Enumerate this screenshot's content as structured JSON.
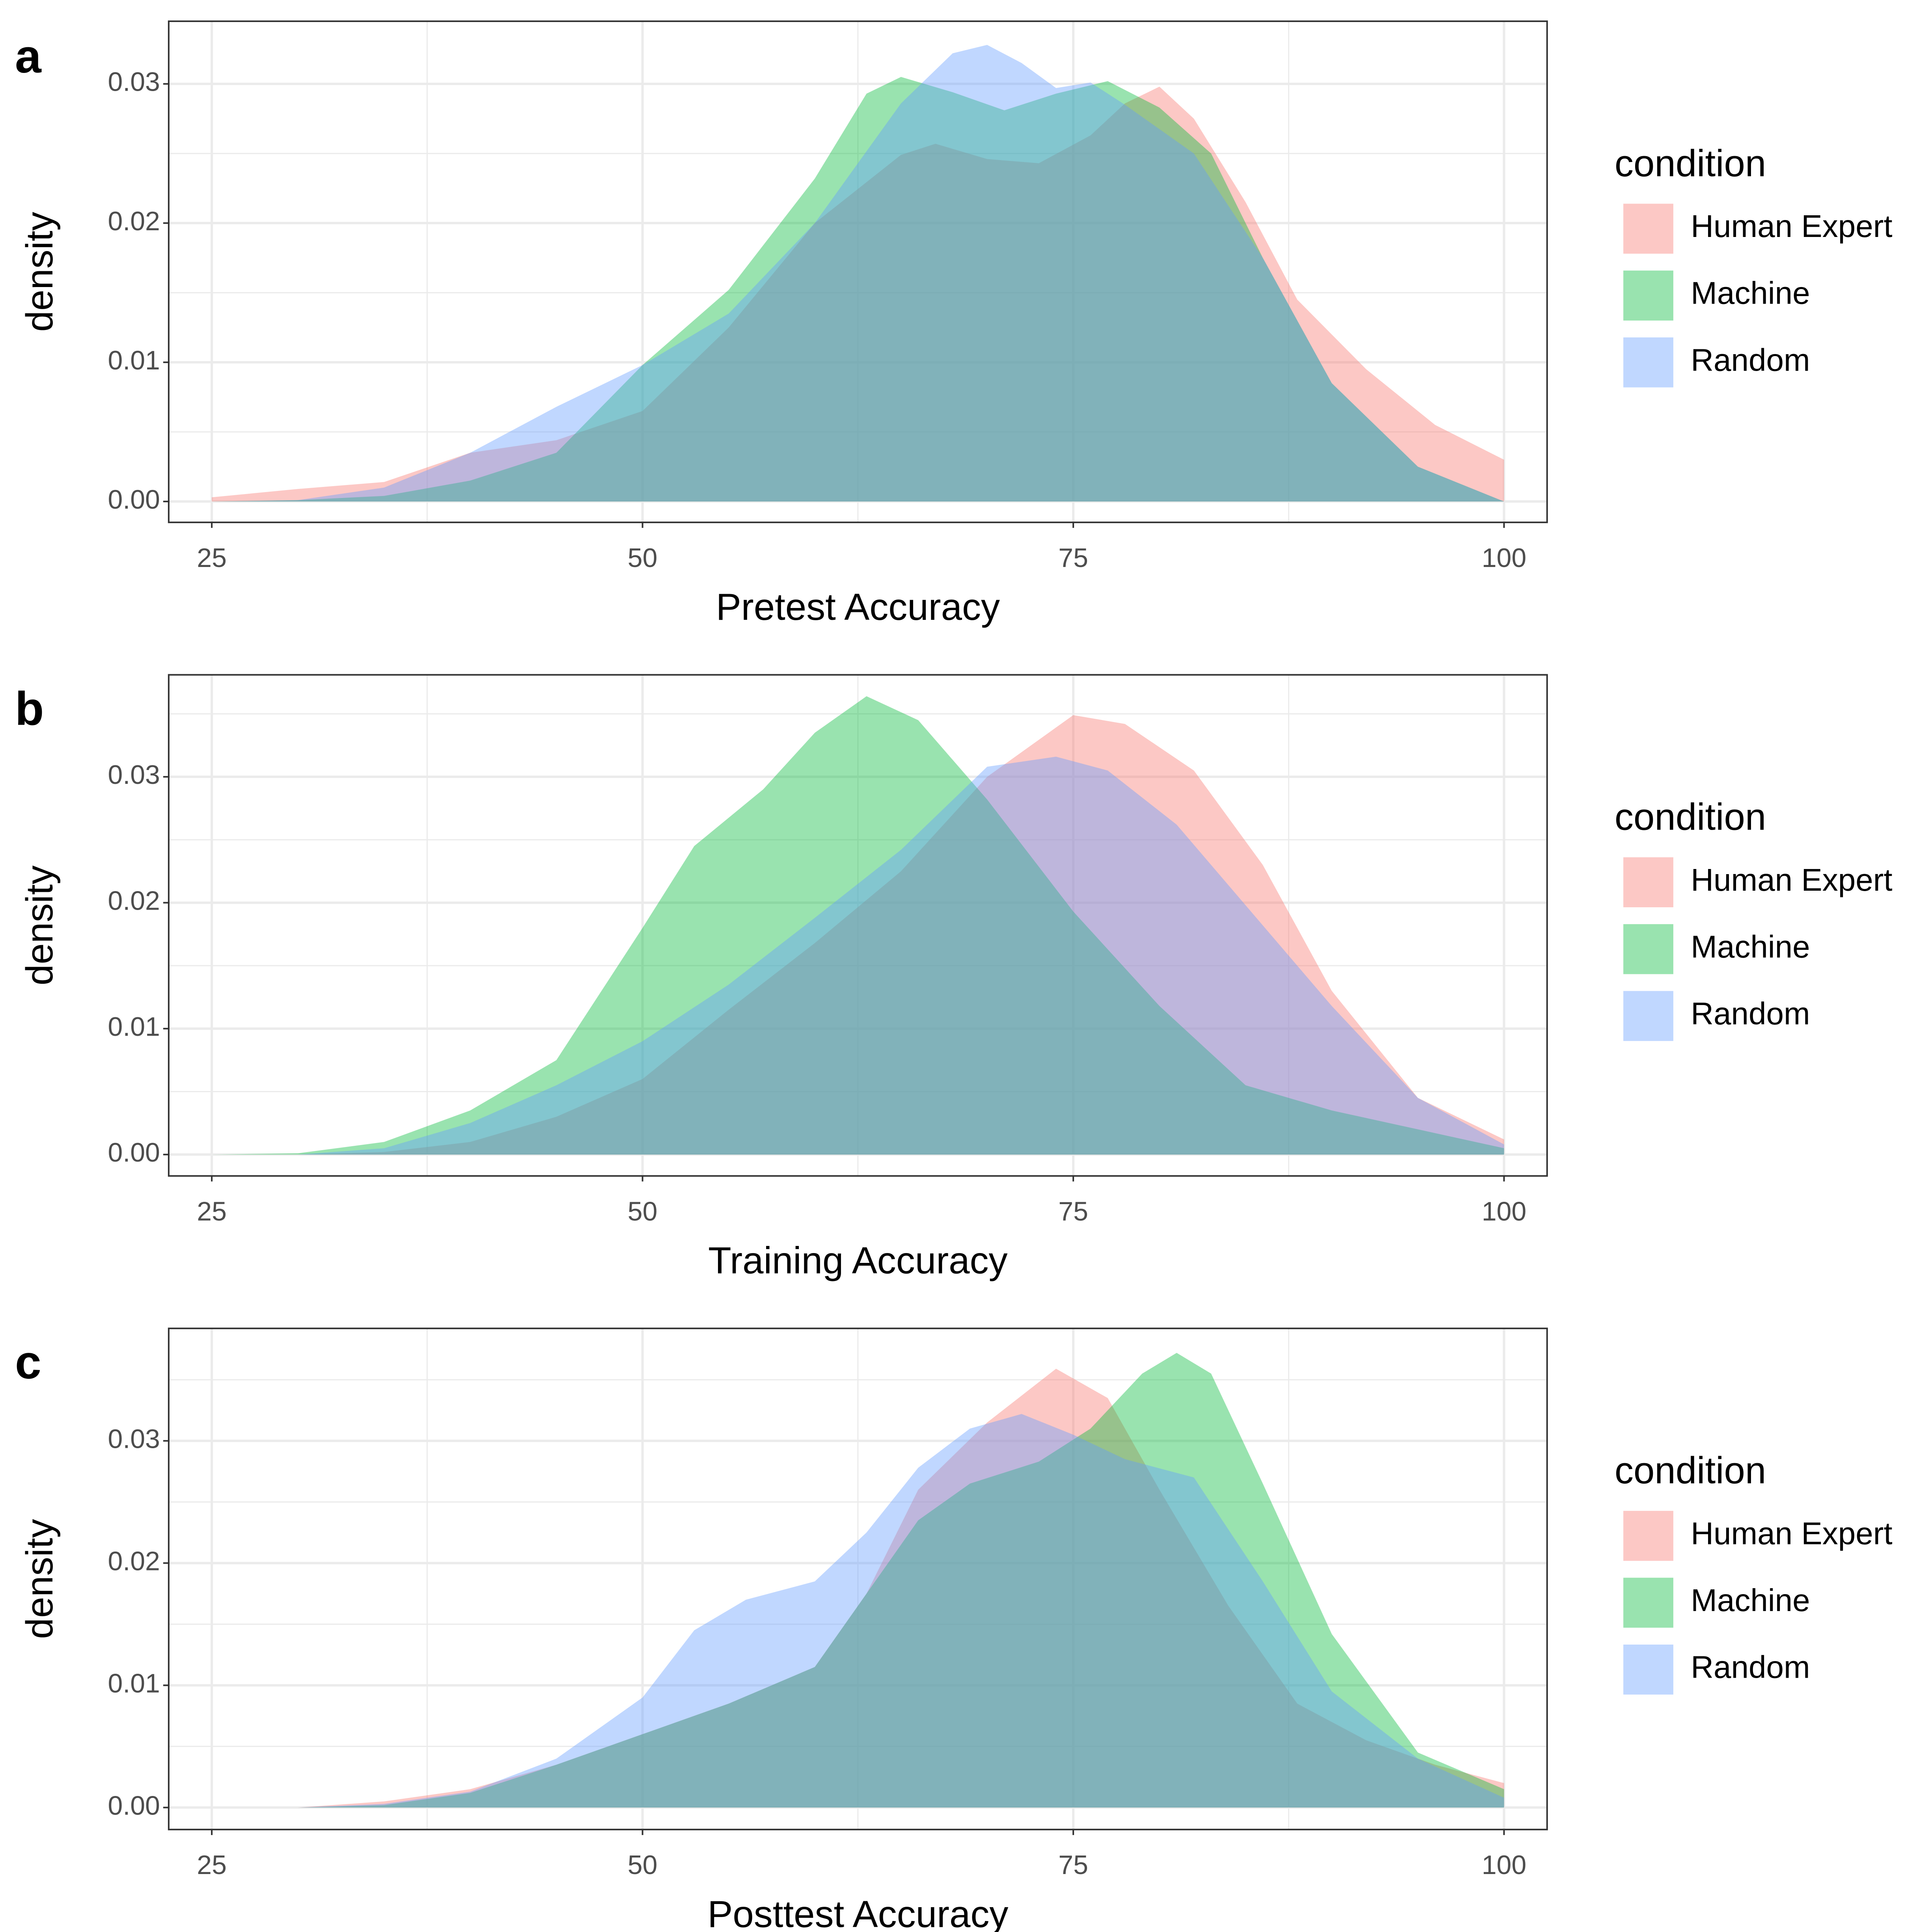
{
  "colors": {
    "human_expert": "#F8766D",
    "machine": "#00BA38",
    "random": "#619CFF",
    "grid": "#EBEBEB",
    "panel_border": "#333333"
  },
  "legend": {
    "title": "condition",
    "items": [
      "Human Expert",
      "Machine",
      "Random"
    ]
  },
  "chart_data": [
    {
      "type": "area",
      "panel": "a",
      "xlabel": "Pretest Accuracy",
      "ylabel": "density",
      "xlim": [
        22.5,
        102.5
      ],
      "ylim": [
        -0.0015,
        0.0345
      ],
      "xticks": [
        "25",
        "50",
        "75",
        "100"
      ],
      "yticks": [
        "0.00",
        "0.01",
        "0.02",
        "0.03"
      ],
      "grid": true,
      "legend_position": "right",
      "series": [
        {
          "name": "Human Expert",
          "color": "#F8766D",
          "points": [
            [
              25,
              0.0003
            ],
            [
              30,
              0.0009
            ],
            [
              35,
              0.0014
            ],
            [
              40,
              0.0035
            ],
            [
              45,
              0.0044
            ],
            [
              50,
              0.0065
            ],
            [
              55,
              0.0125
            ],
            [
              60,
              0.02
            ],
            [
              65,
              0.0249
            ],
            [
              67,
              0.0257
            ],
            [
              70,
              0.0246
            ],
            [
              73,
              0.0243
            ],
            [
              76,
              0.0263
            ],
            [
              78,
              0.0286
            ],
            [
              80,
              0.0298
            ],
            [
              82,
              0.0275
            ],
            [
              85,
              0.0215
            ],
            [
              88,
              0.0145
            ],
            [
              92,
              0.0095
            ],
            [
              96,
              0.0055
            ],
            [
              100,
              0.003
            ]
          ]
        },
        {
          "name": "Machine",
          "color": "#00BA38",
          "points": [
            [
              25,
              0.0
            ],
            [
              30,
              0.0001
            ],
            [
              35,
              0.0004
            ],
            [
              40,
              0.0015
            ],
            [
              45,
              0.0035
            ],
            [
              50,
              0.0098
            ],
            [
              55,
              0.0152
            ],
            [
              60,
              0.0232
            ],
            [
              63,
              0.0293
            ],
            [
              65,
              0.0305
            ],
            [
              68,
              0.0294
            ],
            [
              71,
              0.0281
            ],
            [
              74,
              0.0293
            ],
            [
              77,
              0.0302
            ],
            [
              80,
              0.0283
            ],
            [
              83,
              0.025
            ],
            [
              86,
              0.0175
            ],
            [
              90,
              0.0085
            ],
            [
              95,
              0.0025
            ],
            [
              100,
              0.0
            ]
          ]
        },
        {
          "name": "Random",
          "color": "#619CFF",
          "points": [
            [
              25,
              0.0
            ],
            [
              30,
              0.0001
            ],
            [
              35,
              0.001
            ],
            [
              40,
              0.0035
            ],
            [
              45,
              0.0068
            ],
            [
              50,
              0.0098
            ],
            [
              55,
              0.0135
            ],
            [
              60,
              0.02
            ],
            [
              65,
              0.0286
            ],
            [
              68,
              0.0322
            ],
            [
              70,
              0.0328
            ],
            [
              72,
              0.0315
            ],
            [
              74,
              0.0297
            ],
            [
              76,
              0.0301
            ],
            [
              78,
              0.0285
            ],
            [
              82,
              0.025
            ],
            [
              86,
              0.0175
            ],
            [
              90,
              0.0085
            ],
            [
              95,
              0.0025
            ],
            [
              100,
              0.0
            ]
          ]
        }
      ]
    },
    {
      "type": "area",
      "panel": "b",
      "xlabel": "Training Accuracy",
      "ylabel": "density",
      "xlim": [
        22.5,
        102.5
      ],
      "ylim": [
        -0.0017,
        0.0381
      ],
      "xticks": [
        "25",
        "50",
        "75",
        "100"
      ],
      "yticks": [
        "0.00",
        "0.01",
        "0.02",
        "0.03"
      ],
      "grid": true,
      "legend_position": "right",
      "series": [
        {
          "name": "Human Expert",
          "color": "#F8766D",
          "points": [
            [
              25,
              0.0
            ],
            [
              30,
              0.0
            ],
            [
              35,
              0.0002
            ],
            [
              40,
              0.001
            ],
            [
              45,
              0.003
            ],
            [
              50,
              0.006
            ],
            [
              55,
              0.0115
            ],
            [
              60,
              0.0168
            ],
            [
              65,
              0.0225
            ],
            [
              70,
              0.03
            ],
            [
              75,
              0.0349
            ],
            [
              78,
              0.0342
            ],
            [
              82,
              0.0305
            ],
            [
              86,
              0.023
            ],
            [
              90,
              0.013
            ],
            [
              95,
              0.0045
            ],
            [
              100,
              0.0012
            ]
          ]
        },
        {
          "name": "Machine",
          "color": "#00BA38",
          "points": [
            [
              25,
              0.0
            ],
            [
              30,
              0.0001
            ],
            [
              35,
              0.001
            ],
            [
              40,
              0.0035
            ],
            [
              45,
              0.0075
            ],
            [
              50,
              0.018
            ],
            [
              53,
              0.0245
            ],
            [
              57,
              0.029
            ],
            [
              60,
              0.0335
            ],
            [
              63,
              0.0364
            ],
            [
              66,
              0.0345
            ],
            [
              70,
              0.0282
            ],
            [
              75,
              0.0193
            ],
            [
              80,
              0.0118
            ],
            [
              85,
              0.0055
            ],
            [
              90,
              0.0035
            ],
            [
              95,
              0.002
            ],
            [
              100,
              0.0005
            ]
          ]
        },
        {
          "name": "Random",
          "color": "#619CFF",
          "points": [
            [
              25,
              0.0
            ],
            [
              30,
              0.0
            ],
            [
              35,
              0.0005
            ],
            [
              40,
              0.0025
            ],
            [
              45,
              0.0055
            ],
            [
              50,
              0.009
            ],
            [
              55,
              0.0135
            ],
            [
              60,
              0.0188
            ],
            [
              65,
              0.0242
            ],
            [
              70,
              0.0308
            ],
            [
              74,
              0.0316
            ],
            [
              77,
              0.0305
            ],
            [
              81,
              0.0262
            ],
            [
              85,
              0.0198
            ],
            [
              90,
              0.0118
            ],
            [
              95,
              0.0045
            ],
            [
              100,
              0.0008
            ]
          ]
        }
      ]
    },
    {
      "type": "area",
      "panel": "c",
      "xlabel": "Posttest Accuracy",
      "ylabel": "density",
      "xlim": [
        22.5,
        102.5
      ],
      "ylim": [
        -0.0018,
        0.0392
      ],
      "xticks": [
        "25",
        "50",
        "75",
        "100"
      ],
      "yticks": [
        "0.00",
        "0.01",
        "0.02",
        "0.03"
      ],
      "grid": true,
      "legend_position": "right",
      "series": [
        {
          "name": "Human Expert",
          "color": "#F8766D",
          "points": [
            [
              25,
              0.0
            ],
            [
              30,
              0.0
            ],
            [
              35,
              0.0005
            ],
            [
              40,
              0.0015
            ],
            [
              45,
              0.0035
            ],
            [
              50,
              0.006
            ],
            [
              55,
              0.0085
            ],
            [
              60,
              0.0115
            ],
            [
              63,
              0.0175
            ],
            [
              66,
              0.026
            ],
            [
              70,
              0.0315
            ],
            [
              74,
              0.0359
            ],
            [
              77,
              0.0335
            ],
            [
              80,
              0.026
            ],
            [
              84,
              0.0165
            ],
            [
              88,
              0.0085
            ],
            [
              92,
              0.0055
            ],
            [
              96,
              0.0035
            ],
            [
              100,
              0.002
            ]
          ]
        },
        {
          "name": "Machine",
          "color": "#00BA38",
          "points": [
            [
              25,
              0.0
            ],
            [
              30,
              0.0
            ],
            [
              35,
              0.0002
            ],
            [
              40,
              0.0012
            ],
            [
              45,
              0.0035
            ],
            [
              50,
              0.006
            ],
            [
              55,
              0.0085
            ],
            [
              60,
              0.0115
            ],
            [
              63,
              0.0175
            ],
            [
              66,
              0.0235
            ],
            [
              69,
              0.0265
            ],
            [
              73,
              0.0283
            ],
            [
              76,
              0.031
            ],
            [
              79,
              0.0355
            ],
            [
              81,
              0.0372
            ],
            [
              83,
              0.0355
            ],
            [
              86,
              0.0265
            ],
            [
              90,
              0.0142
            ],
            [
              95,
              0.0045
            ],
            [
              100,
              0.0015
            ]
          ]
        },
        {
          "name": "Random",
          "color": "#619CFF",
          "points": [
            [
              25,
              0.0
            ],
            [
              30,
              0.0
            ],
            [
              35,
              0.0003
            ],
            [
              40,
              0.0013
            ],
            [
              45,
              0.004
            ],
            [
              50,
              0.009
            ],
            [
              53,
              0.0145
            ],
            [
              56,
              0.017
            ],
            [
              60,
              0.0185
            ],
            [
              63,
              0.0225
            ],
            [
              66,
              0.0278
            ],
            [
              69,
              0.031
            ],
            [
              72,
              0.0322
            ],
            [
              75,
              0.0305
            ],
            [
              78,
              0.0285
            ],
            [
              82,
              0.027
            ],
            [
              86,
              0.0185
            ],
            [
              90,
              0.0095
            ],
            [
              95,
              0.004
            ],
            [
              100,
              0.0008
            ]
          ]
        }
      ]
    }
  ]
}
